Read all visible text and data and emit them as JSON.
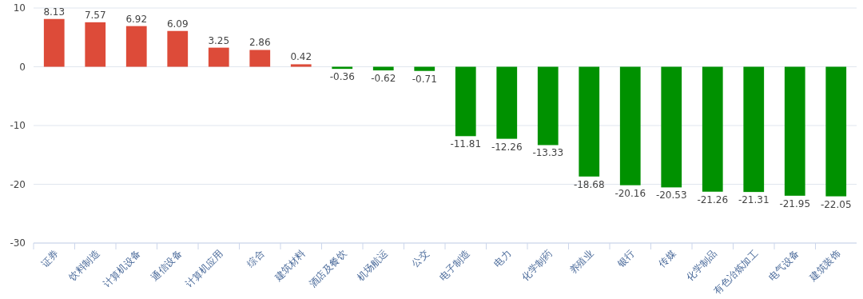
{
  "chart_data": {
    "type": "bar",
    "categories": [
      "证券",
      "饮料制造",
      "计算机设备",
      "通信设备",
      "计算机应用",
      "综合",
      "建筑材料",
      "酒店及餐饮",
      "机场航运",
      "公交",
      "电子制造",
      "电力",
      "化学制药",
      "养殖业",
      "银行",
      "传媒",
      "化学制品",
      "有色冶炼加工",
      "电气设备",
      "建筑装饰"
    ],
    "values": [
      8.13,
      7.57,
      6.92,
      6.09,
      3.25,
      2.86,
      0.42,
      -0.36,
      -0.62,
      -0.71,
      -11.81,
      -12.26,
      -13.33,
      -18.68,
      -20.16,
      -20.53,
      -21.26,
      -21.31,
      -21.95,
      -22.05
    ],
    "colors": [
      "#dd4b39",
      "#dd4b39",
      "#dd4b39",
      "#dd4b39",
      "#dd4b39",
      "#dd4b39",
      "#dd4b39",
      "#009100",
      "#009100",
      "#009100",
      "#009100",
      "#009100",
      "#009100",
      "#009100",
      "#009100",
      "#009100",
      "#009100",
      "#009100",
      "#009100",
      "#009100"
    ],
    "ylim": [
      -30,
      10
    ],
    "yticks": [
      -30,
      -20,
      -10,
      0,
      10
    ],
    "grid": "y",
    "data_labels": true
  }
}
